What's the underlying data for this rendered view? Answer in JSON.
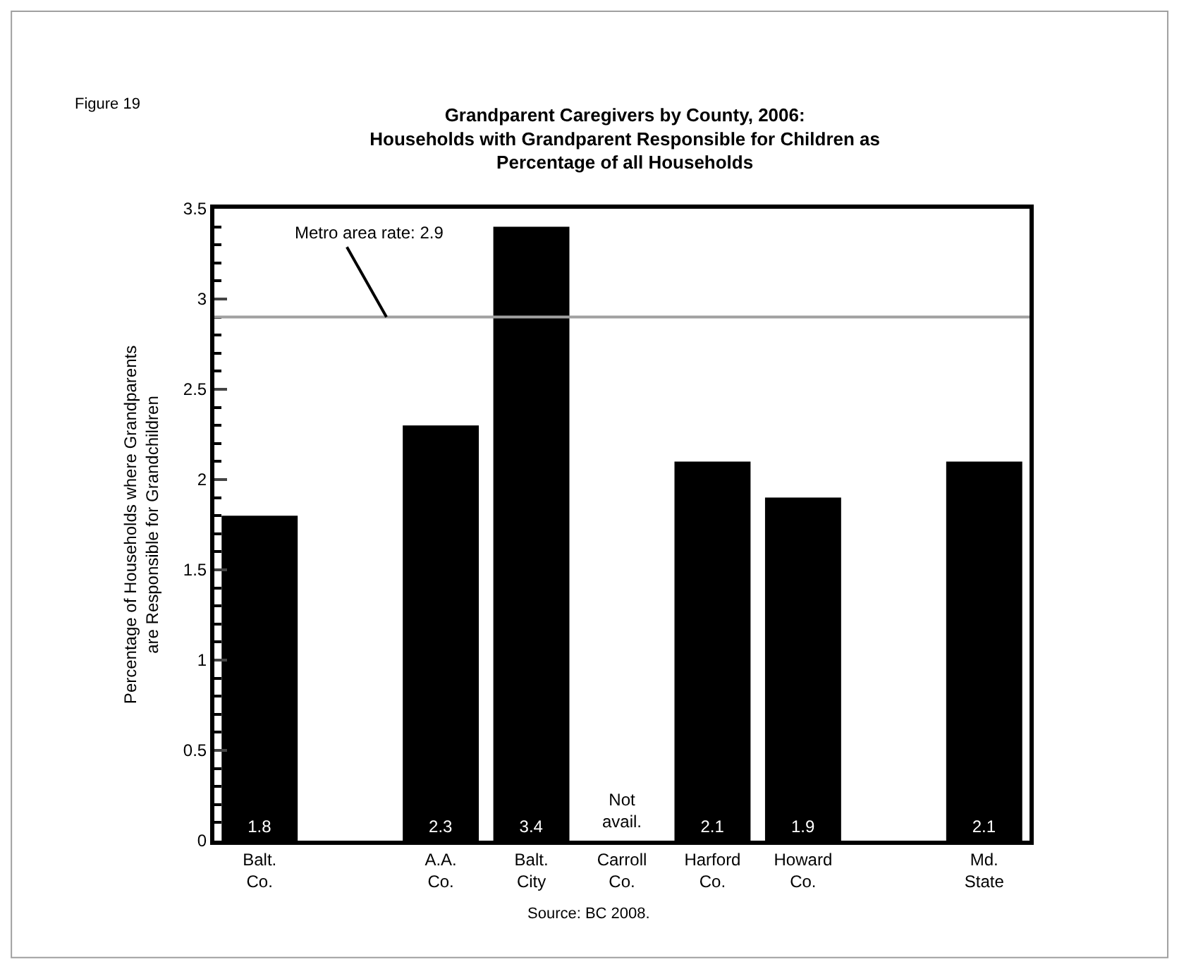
{
  "chart_data": {
    "type": "bar",
    "title": "Grandparent Caregivers by County, 2006:\nHouseholds with Grandparent Responsible for Children as\nPercentage of all Households",
    "ylabel": "Percentage of Households where Grandparents\nare Responsible for Grandchildren",
    "categories": [
      "Balt. Co.",
      null,
      "A.A. Co.",
      "Balt. City",
      "Carroll Co.",
      "Harford Co.",
      "Howard Co.",
      null,
      "Md. State"
    ],
    "values": [
      1.8,
      null,
      2.3,
      3.4,
      null,
      2.1,
      1.9,
      null,
      2.1
    ],
    "value_labels": [
      "1.8",
      null,
      "2.3",
      "3.4",
      "Not avail.",
      "2.1",
      "1.9",
      null,
      "2.1"
    ],
    "color": "#000000",
    "ylim": [
      0,
      3.5
    ],
    "yticks": [
      0,
      0.5,
      1,
      1.5,
      2,
      2.5,
      3,
      3.5
    ],
    "ref_lines": [
      {
        "axis": "y",
        "value": 2.9,
        "label": "Metro area rate: 2.9",
        "color": "#a0a0a0"
      }
    ],
    "annotations": [
      "Figure 19",
      "Source: BC 2008."
    ]
  }
}
